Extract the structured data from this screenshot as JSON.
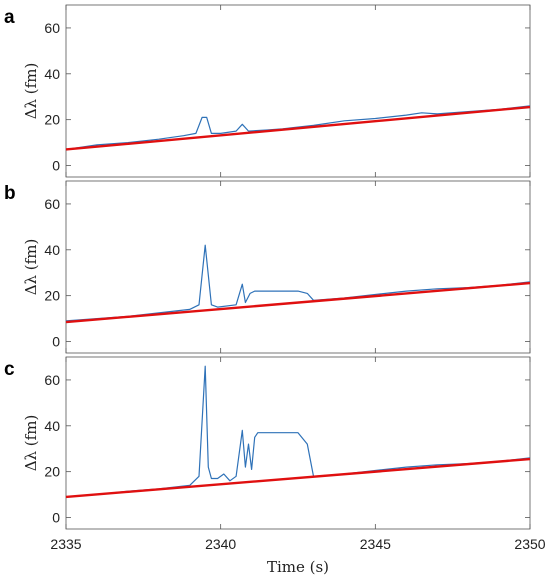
{
  "chart_data": [
    {
      "panel": "a",
      "type": "line",
      "xlabel": "",
      "ylabel": "Δλ (fm)",
      "xlim": [
        2335,
        2350
      ],
      "ylim": [
        -5,
        70
      ],
      "xticks": [
        2335,
        2340,
        2345,
        2350
      ],
      "yticks": [
        0,
        20,
        40,
        60
      ],
      "series": [
        {
          "kind": "measured",
          "color": "#2f72b8",
          "x": [
            2335,
            2336,
            2337,
            2338,
            2338.8,
            2339.2,
            2339.4,
            2339.55,
            2339.7,
            2340,
            2340.5,
            2340.7,
            2340.9,
            2341.5,
            2342,
            2343,
            2344,
            2345,
            2346,
            2346.5,
            2347,
            2348,
            2349,
            2350
          ],
          "y": [
            7,
            9,
            10,
            11.5,
            13,
            14,
            21,
            21,
            14,
            14,
            15,
            18,
            15,
            15.5,
            16,
            17.5,
            19.5,
            20.5,
            22,
            23,
            22.5,
            23.5,
            24.5,
            26
          ]
        },
        {
          "kind": "baseline-fit",
          "color": "#e01010",
          "x": [
            2335,
            2350
          ],
          "y": [
            7,
            25.5
          ]
        }
      ]
    },
    {
      "panel": "b",
      "type": "line",
      "xlabel": "",
      "ylabel": "Δλ (fm)",
      "xlim": [
        2335,
        2350
      ],
      "ylim": [
        -5,
        70
      ],
      "xticks": [
        2335,
        2340,
        2345,
        2350
      ],
      "yticks": [
        0,
        20,
        40,
        60
      ],
      "series": [
        {
          "kind": "measured",
          "color": "#2f72b8",
          "x": [
            2335,
            2336,
            2337,
            2338,
            2339,
            2339.3,
            2339.5,
            2339.7,
            2339.9,
            2340.5,
            2340.7,
            2340.8,
            2340.95,
            2341.1,
            2341.5,
            2342,
            2342.5,
            2342.8,
            2343,
            2344,
            2345,
            2346,
            2347,
            2348,
            2349,
            2350
          ],
          "y": [
            9,
            10,
            11,
            12.5,
            14,
            16,
            42,
            16,
            15,
            16,
            25,
            17,
            21,
            22,
            22,
            22,
            22,
            21,
            18,
            19,
            20.5,
            22,
            23,
            23.5,
            24.5,
            26
          ]
        },
        {
          "kind": "baseline-fit",
          "color": "#e01010",
          "x": [
            2335,
            2350
          ],
          "y": [
            8.5,
            25.5
          ]
        }
      ]
    },
    {
      "panel": "c",
      "type": "line",
      "xlabel": "Time (s)",
      "ylabel": "Δλ (fm)",
      "xlim": [
        2335,
        2350
      ],
      "ylim": [
        -5,
        70
      ],
      "xticks": [
        2335,
        2340,
        2345,
        2350
      ],
      "yticks": [
        0,
        20,
        40,
        60
      ],
      "series": [
        {
          "kind": "measured",
          "color": "#2f72b8",
          "x": [
            2335,
            2336,
            2337,
            2338,
            2339,
            2339.3,
            2339.5,
            2339.6,
            2339.7,
            2339.9,
            2340.1,
            2340.3,
            2340.5,
            2340.7,
            2340.8,
            2340.9,
            2341.0,
            2341.1,
            2341.2,
            2341.5,
            2342,
            2342.5,
            2342.8,
            2343,
            2344,
            2345,
            2346,
            2347,
            2348,
            2349,
            2350
          ],
          "y": [
            9,
            10,
            11.5,
            12.5,
            14,
            18,
            66,
            22,
            17,
            17,
            19,
            16,
            18,
            38,
            22,
            32,
            21,
            35,
            37,
            37,
            37,
            37,
            32,
            18,
            19,
            20.5,
            22,
            23,
            23.5,
            24.5,
            26
          ]
        },
        {
          "kind": "baseline-fit",
          "color": "#e01010",
          "x": [
            2335,
            2350
          ],
          "y": [
            9,
            25.5
          ]
        }
      ]
    }
  ]
}
